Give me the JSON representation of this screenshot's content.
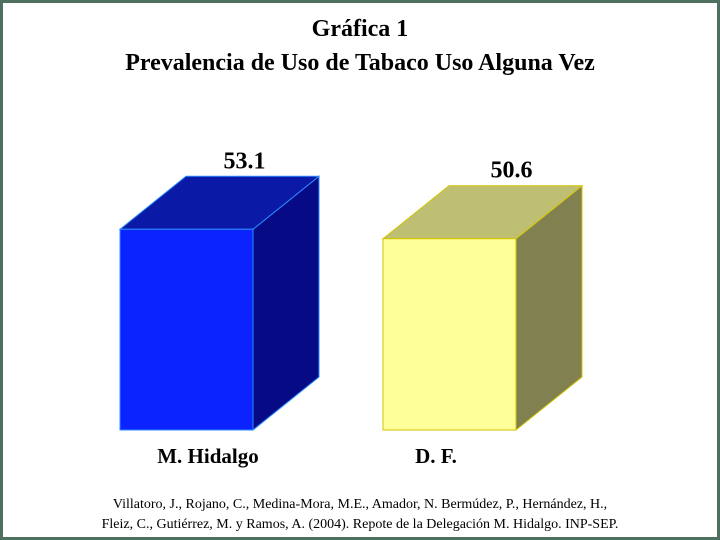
{
  "chart_data": {
    "type": "bar",
    "title": "Gráfica 1",
    "subtitle": "Prevalencia de Uso de Tabaco Uso Alguna Vez",
    "categories": [
      "M. Hidalgo",
      "D. F."
    ],
    "values": [
      53.1,
      50.6
    ],
    "data_labels": [
      "53.1",
      "50.6"
    ],
    "style": "3d-column",
    "colors": {
      "M. Hidalgo": {
        "front": "#0a23ff",
        "top": "#0b1aa6",
        "side": "#060a85",
        "edge": "#2b8cff"
      },
      "D. F.": {
        "front": "#ffff9a",
        "top": "#bfbf74",
        "side": "#808050",
        "edge": "#d4c400"
      }
    },
    "xlabel": "",
    "ylabel": "",
    "grid": false,
    "legend": "none"
  },
  "citation": {
    "line1": "Villatoro, J., Rojano, C., Medina-Mora, M.E., Amador, N. Bermúdez, P., Hernández, H.,",
    "line2": "Fleiz, C., Gutiérrez, M. y Ramos, A. (2004). Repote de la Delegación M. Hidalgo. INP-SEP."
  },
  "colors": {
    "frame_border": "#4f6f5f",
    "background": "#ffffff"
  }
}
